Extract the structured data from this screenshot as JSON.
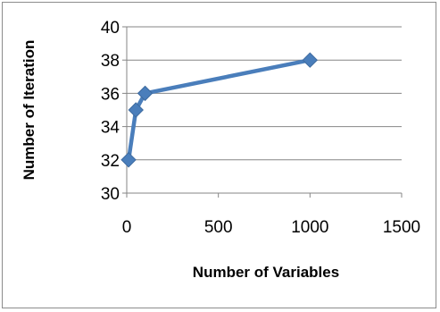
{
  "chart_data": {
    "type": "line",
    "title": "",
    "xlabel": "Number of Variables",
    "ylabel": "Number of Iteration",
    "xlim": [
      0,
      1500
    ],
    "ylim": [
      30,
      40
    ],
    "x_ticks": [
      0,
      500,
      1000,
      1500
    ],
    "y_ticks": [
      30,
      32,
      34,
      36,
      38,
      40
    ],
    "grid": "horizontal major gridlines",
    "legend": "none",
    "series": [
      {
        "x": [
          10,
          50,
          100,
          1000
        ],
        "y": [
          32,
          35,
          36,
          38
        ],
        "color": "#4a7ebb",
        "marker": "diamond"
      }
    ]
  }
}
